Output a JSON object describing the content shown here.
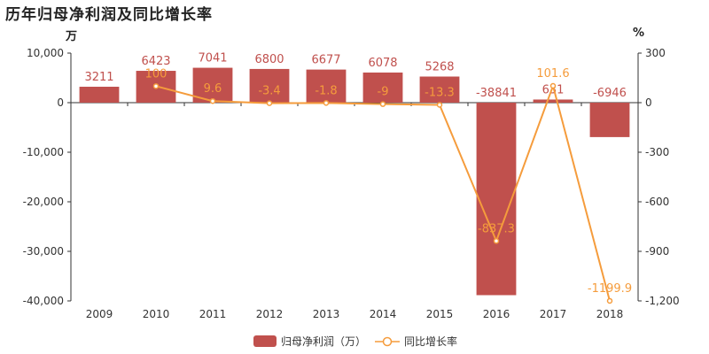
{
  "title": "历年归母净利润及同比增长率",
  "colors": {
    "bar": "#c0504d",
    "line": "#f59c3c",
    "axis": "#333333"
  },
  "chart_data": {
    "type": "bar",
    "title": "历年归母净利润及同比增长率",
    "categories": [
      "2009",
      "2010",
      "2011",
      "2012",
      "2013",
      "2014",
      "2015",
      "2016",
      "2017",
      "2018"
    ],
    "series": [
      {
        "name": "归母净利润（万）",
        "type": "bar",
        "axis": "left",
        "values": [
          3211,
          6423,
          7041,
          6800,
          6677,
          6078,
          5268,
          -38841,
          631,
          -6946
        ]
      },
      {
        "name": "同比增长率",
        "type": "line",
        "axis": "right",
        "values": [
          null,
          100,
          9.6,
          -3.4,
          -1.8,
          -9,
          -13.3,
          -837.3,
          101.6,
          -1199.9
        ]
      }
    ],
    "y_left": {
      "unit": "万",
      "ylim": [
        -40000,
        10000
      ],
      "ticks": [
        10000,
        0,
        -10000,
        -20000,
        -30000,
        -40000
      ],
      "tick_labels": [
        "10,000",
        "0",
        "-10,000",
        "-20,000",
        "-30,000",
        "-40,000"
      ]
    },
    "y_right": {
      "unit": "%",
      "ylim": [
        -1200,
        300
      ],
      "ticks": [
        300,
        0,
        -300,
        -600,
        -900,
        -1200
      ],
      "tick_labels": [
        "300",
        "0",
        "-300",
        "-600",
        "-900",
        "-1,200"
      ]
    },
    "legend_placement": "bottom-center",
    "grid": false
  },
  "legend": {
    "bar_label": "归母净利润（万）",
    "line_label": "同比增长率"
  }
}
